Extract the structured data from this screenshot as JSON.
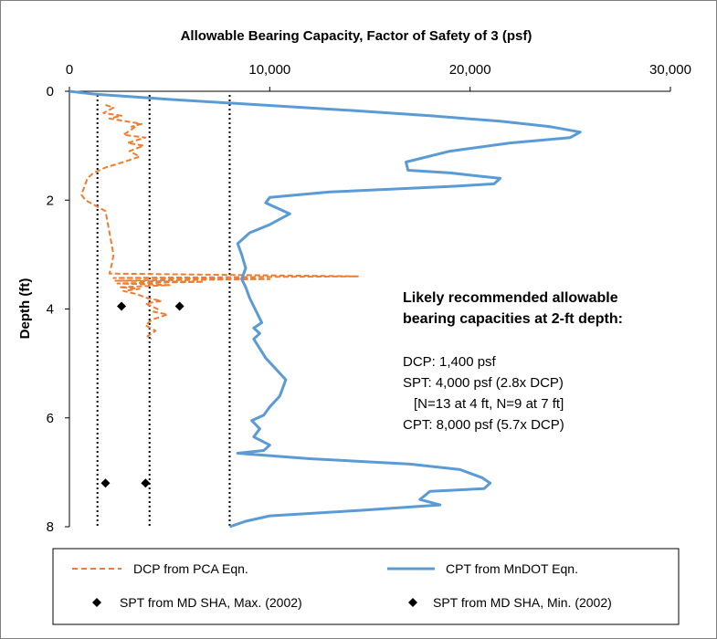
{
  "chart_data": {
    "type": "line",
    "title": "Allowable Bearing Capacity, Factor of Safety of 3 (psf)",
    "xlabel": "Allowable Bearing Capacity, Factor of Safety of 3 (psf)",
    "ylabel": "Depth (ft)",
    "xlim": [
      0,
      30000
    ],
    "ylim": [
      0,
      8
    ],
    "y_reversed": true,
    "x_axis_position": "top",
    "x_ticks": [
      0,
      10000,
      20000,
      30000
    ],
    "x_tick_labels": [
      "0",
      "10,000",
      "20,000",
      "30,000"
    ],
    "y_ticks": [
      0,
      2,
      4,
      6,
      8
    ],
    "y_tick_labels": [
      "0",
      "2",
      "4",
      "6",
      "8"
    ],
    "reference_lines": [
      {
        "name": "DCP recommended",
        "x": 1400,
        "style": "dotted",
        "color": "#000000"
      },
      {
        "name": "SPT recommended",
        "x": 4000,
        "style": "dotted",
        "color": "#000000"
      },
      {
        "name": "CPT recommended",
        "x": 8000,
        "style": "dotted",
        "color": "#000000"
      }
    ],
    "series": [
      {
        "name": "DCP from PCA Eqn.",
        "style": "dashed",
        "color": "#ED7D31",
        "points": [
          [
            1800,
            0.25
          ],
          [
            2200,
            0.3
          ],
          [
            1700,
            0.4
          ],
          [
            2600,
            0.45
          ],
          [
            2000,
            0.5
          ],
          [
            3600,
            0.6
          ],
          [
            3100,
            0.65
          ],
          [
            3500,
            0.6
          ],
          [
            2700,
            0.8
          ],
          [
            3800,
            0.85
          ],
          [
            2900,
            0.95
          ],
          [
            3700,
            1.0
          ],
          [
            3000,
            1.1
          ],
          [
            3500,
            1.2
          ],
          [
            2700,
            1.3
          ],
          [
            1800,
            1.4
          ],
          [
            1200,
            1.5
          ],
          [
            900,
            1.6
          ],
          [
            700,
            1.8
          ],
          [
            600,
            1.9
          ],
          [
            800,
            2.0
          ],
          [
            1300,
            2.1
          ],
          [
            1800,
            2.2
          ],
          [
            1900,
            2.4
          ],
          [
            2000,
            2.6
          ],
          [
            2100,
            2.8
          ],
          [
            2200,
            3.0
          ],
          [
            2100,
            3.2
          ],
          [
            2000,
            3.35
          ],
          [
            14400,
            3.4
          ],
          [
            2200,
            3.43
          ],
          [
            10000,
            3.45
          ],
          [
            2300,
            3.48
          ],
          [
            6700,
            3.5
          ],
          [
            2400,
            3.53
          ],
          [
            5000,
            3.56
          ],
          [
            2500,
            3.6
          ],
          [
            3500,
            3.63
          ],
          [
            2700,
            3.67
          ],
          [
            3300,
            3.72
          ],
          [
            3900,
            3.8
          ],
          [
            4600,
            3.85
          ],
          [
            3800,
            3.9
          ],
          [
            4400,
            4.0
          ],
          [
            4200,
            4.05
          ],
          [
            4900,
            4.1
          ],
          [
            4100,
            4.2
          ],
          [
            3800,
            4.3
          ],
          [
            4300,
            4.4
          ],
          [
            3900,
            4.5
          ],
          [
            4100,
            4.55
          ]
        ]
      },
      {
        "name": "CPT from MnDOT Eqn.",
        "style": "solid",
        "color": "#5B9BD5",
        "points": [
          [
            0,
            0.0
          ],
          [
            1200,
            0.05
          ],
          [
            5000,
            0.15
          ],
          [
            9500,
            0.25
          ],
          [
            14000,
            0.35
          ],
          [
            18000,
            0.45
          ],
          [
            21500,
            0.55
          ],
          [
            24000,
            0.65
          ],
          [
            25500,
            0.75
          ],
          [
            25000,
            0.85
          ],
          [
            22000,
            0.95
          ],
          [
            19000,
            1.1
          ],
          [
            16800,
            1.3
          ],
          [
            16900,
            1.45
          ],
          [
            19000,
            1.5
          ],
          [
            21500,
            1.6
          ],
          [
            21200,
            1.7
          ],
          [
            19000,
            1.75
          ],
          [
            13000,
            1.85
          ],
          [
            10000,
            1.95
          ],
          [
            9800,
            2.05
          ],
          [
            10400,
            2.15
          ],
          [
            11000,
            2.25
          ],
          [
            10000,
            2.45
          ],
          [
            9000,
            2.6
          ],
          [
            8400,
            2.8
          ],
          [
            8600,
            3.0
          ],
          [
            8800,
            3.25
          ],
          [
            8600,
            3.45
          ],
          [
            8800,
            3.6
          ],
          [
            9000,
            3.8
          ],
          [
            9400,
            4.1
          ],
          [
            9600,
            4.25
          ],
          [
            9200,
            4.35
          ],
          [
            9500,
            4.45
          ],
          [
            9200,
            4.55
          ],
          [
            9800,
            4.9
          ],
          [
            10800,
            5.3
          ],
          [
            10500,
            5.6
          ],
          [
            10000,
            5.8
          ],
          [
            9700,
            5.95
          ],
          [
            9100,
            6.05
          ],
          [
            9500,
            6.2
          ],
          [
            9200,
            6.35
          ],
          [
            10000,
            6.5
          ],
          [
            9700,
            6.6
          ],
          [
            8400,
            6.65
          ],
          [
            12000,
            6.75
          ],
          [
            17000,
            6.85
          ],
          [
            19500,
            6.95
          ],
          [
            20600,
            7.1
          ],
          [
            21000,
            7.2
          ],
          [
            20700,
            7.3
          ],
          [
            18000,
            7.35
          ],
          [
            17500,
            7.5
          ],
          [
            18500,
            7.6
          ],
          [
            14500,
            7.7
          ],
          [
            10000,
            7.8
          ],
          [
            8800,
            7.9
          ],
          [
            8000,
            8.0
          ]
        ]
      },
      {
        "name": "SPT from MD SHA, Max. (2002)",
        "style": "marker",
        "marker": "diamond",
        "color": "#000000",
        "points": [
          [
            5500,
            3.95
          ],
          [
            3800,
            7.2
          ]
        ]
      },
      {
        "name": "SPT from MD SHA, Min. (2002)",
        "style": "marker",
        "marker": "diamond",
        "color": "#000000",
        "points": [
          [
            2600,
            3.95
          ],
          [
            1800,
            7.2
          ]
        ]
      }
    ],
    "annotation": {
      "heading_line1": "Likely recommended allowable",
      "heading_line2": "bearing capacities at 2-ft depth:",
      "lines": [
        "DCP: 1,400 psf",
        "SPT: 4,000 psf (2.8x DCP)",
        "[N=13 at 4 ft, N=9 at 7 ft]",
        "CPT: 8,000 psf (5.7x DCP)"
      ]
    },
    "legend": {
      "position": "bottom",
      "entries": [
        "DCP from PCA Eqn.",
        "CPT from MnDOT Eqn.",
        "SPT from MD SHA, Max. (2002)",
        "SPT from MD SHA, Min. (2002)"
      ]
    }
  }
}
